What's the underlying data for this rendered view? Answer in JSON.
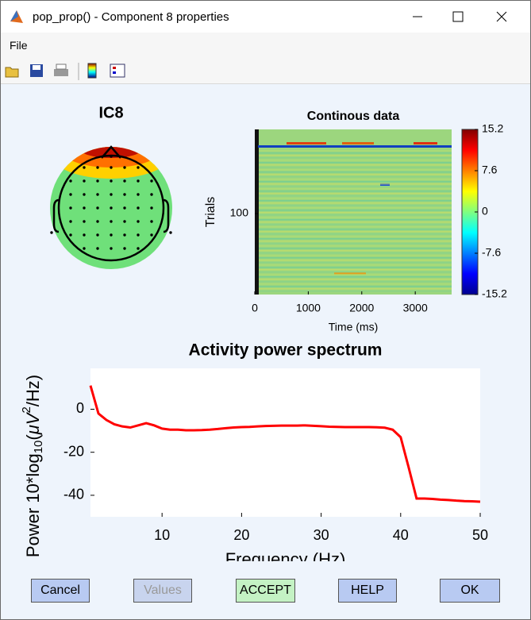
{
  "window": {
    "title": "pop_prop() - Component 8 properties"
  },
  "menu": [
    "File"
  ],
  "topoplot": {
    "title": "IC8"
  },
  "chart_data": [
    {
      "type": "image",
      "title": "Continous data",
      "xlabel": "Time (ms)",
      "ylabel": "Trials",
      "xlim": [
        0,
        3680
      ],
      "xticks": [
        0,
        1000,
        2000,
        3000
      ],
      "ylim": [
        0,
        204
      ],
      "yticks": [
        100
      ],
      "colorbar": {
        "lim": [
          -15.2,
          15.2
        ],
        "ticks": [
          15.2,
          7.6,
          0,
          -7.6,
          -15.2
        ]
      }
    },
    {
      "type": "line",
      "title": "Activity power spectrum",
      "xlabel": "Frequency (Hz)",
      "ylabel": [
        "Power 10*log",
        "10",
        "(",
        "μV",
        "2",
        "/Hz)"
      ],
      "xlim": [
        1,
        50
      ],
      "xticks": [
        10,
        20,
        30,
        40,
        50
      ],
      "ylim": [
        -50,
        19
      ],
      "yticks": [
        -40,
        -20,
        0
      ],
      "x": [
        1,
        2,
        3,
        4,
        5,
        6,
        7,
        8,
        9,
        10,
        11,
        12,
        13,
        14,
        15,
        16,
        17,
        18,
        19,
        20,
        21,
        22,
        23,
        24,
        25,
        26,
        27,
        28,
        29,
        30,
        31,
        32,
        33,
        34,
        35,
        36,
        37,
        38,
        39,
        40,
        41,
        42,
        43,
        44,
        45,
        46,
        47,
        48,
        49,
        50
      ],
      "series": [
        {
          "color": "#ff0000",
          "values": [
            11,
            -2,
            -5,
            -7,
            -8,
            -8.5,
            -7.5,
            -6.5,
            -7.5,
            -9,
            -9.5,
            -9.5,
            -9.8,
            -9.8,
            -9.7,
            -9.5,
            -9.2,
            -8.8,
            -8.5,
            -8.3,
            -8.2,
            -8,
            -7.8,
            -7.7,
            -7.6,
            -7.6,
            -7.6,
            -7.5,
            -7.7,
            -7.9,
            -8.1,
            -8.2,
            -8.3,
            -8.3,
            -8.3,
            -8.3,
            -8.4,
            -8.6,
            -9.5,
            -13,
            -27,
            -41.5,
            -41.5,
            -41.7,
            -42,
            -42.2,
            -42.5,
            -42.7,
            -42.8,
            -43
          ]
        }
      ]
    }
  ],
  "buttons": [
    "Cancel",
    "Values",
    "ACCEPT",
    "HELP",
    "OK"
  ]
}
